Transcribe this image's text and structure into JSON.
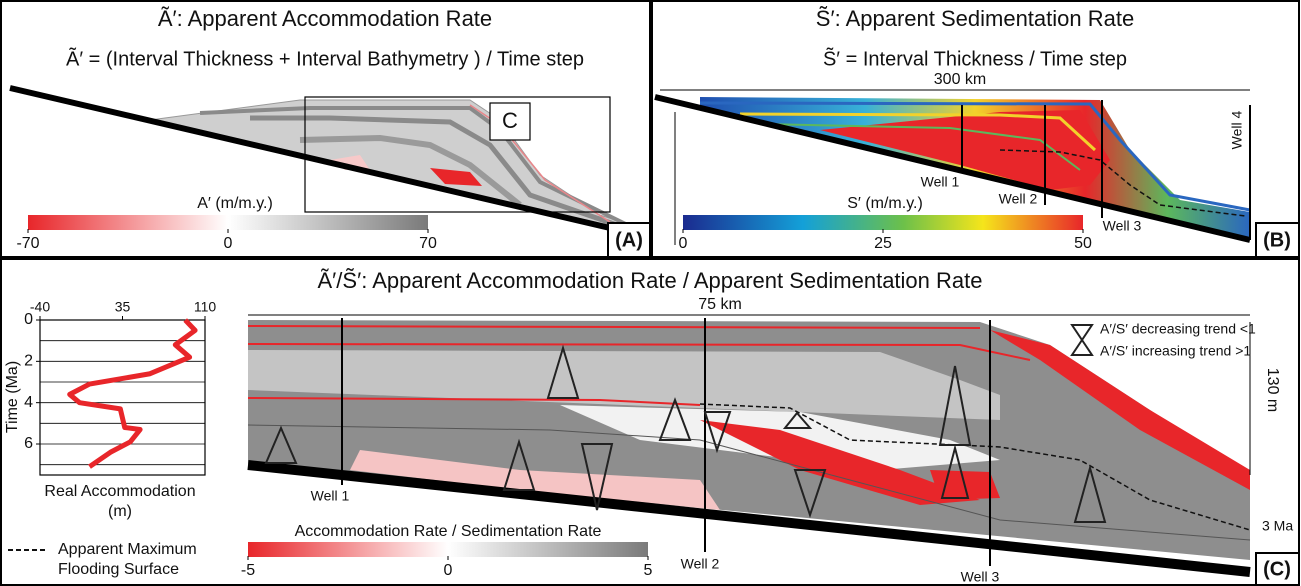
{
  "panel_a": {
    "title": "Ã′: Apparent Accommodation Rate",
    "formula": "Ã′ = (Interval Thickness + Interval Bathymetry ) / Time step",
    "box_label": "C",
    "corner_label": "(A)",
    "colorbar": {
      "label": "A′ (m/m.y.)",
      "lim": [
        -70,
        70
      ],
      "ticks": [
        -70,
        0,
        70
      ]
    }
  },
  "panel_b": {
    "title": "S̃′: Apparent Sedimentation Rate",
    "formula": "S̃′ = Interval Thickness / Time step",
    "width_label": "300 km",
    "wells": [
      "Well 1",
      "Well 2",
      "Well 3",
      "Well 4"
    ],
    "corner_label": "(B)",
    "colorbar": {
      "label": "S′ (m/m.y.)",
      "lim": [
        0,
        50
      ],
      "ticks": [
        0,
        25,
        50
      ]
    }
  },
  "panel_c": {
    "title": "Ã′/S̃′: Apparent Accommodation Rate / Apparent Sedimentation Rate",
    "width_label": "75 km",
    "height_label": "130 m",
    "age_label": "3 Ma",
    "wells": [
      "Well 1",
      "Well 2",
      "Well 3"
    ],
    "legend": [
      "A′/S′ decreasing trend <1",
      "A′/S′ increasing trend >1"
    ],
    "mfs_legend": [
      "Apparent Maximum",
      "Flooding Surface"
    ],
    "corner_label": "(C)",
    "colorbar": {
      "label": "Accommodation Rate / Sedimentation Rate",
      "lim": [
        -5,
        5
      ],
      "ticks": [
        -5,
        0,
        5
      ]
    }
  },
  "chart_data": {
    "type": "line",
    "xlabel": [
      "Real Accommodation",
      "(m)"
    ],
    "ylabel": "Time (Ma)",
    "x": [
      92,
      101,
      83,
      96,
      60,
      5,
      -13,
      -4,
      33,
      37,
      51,
      42,
      24,
      5
    ],
    "y": [
      0,
      0.5,
      1.2,
      1.8,
      2.6,
      3.1,
      3.6,
      4.0,
      4.3,
      5.2,
      5.3,
      5.9,
      6.4,
      7.1
    ],
    "xlim": [
      -40,
      110
    ],
    "xticks": [
      -40,
      35,
      110
    ],
    "ylim": [
      0,
      7.5
    ],
    "yticks": [
      0,
      2,
      4,
      6
    ],
    "ygrid": [
      0,
      1,
      2,
      3,
      4,
      5,
      6,
      7
    ],
    "color": "#e8262a"
  }
}
